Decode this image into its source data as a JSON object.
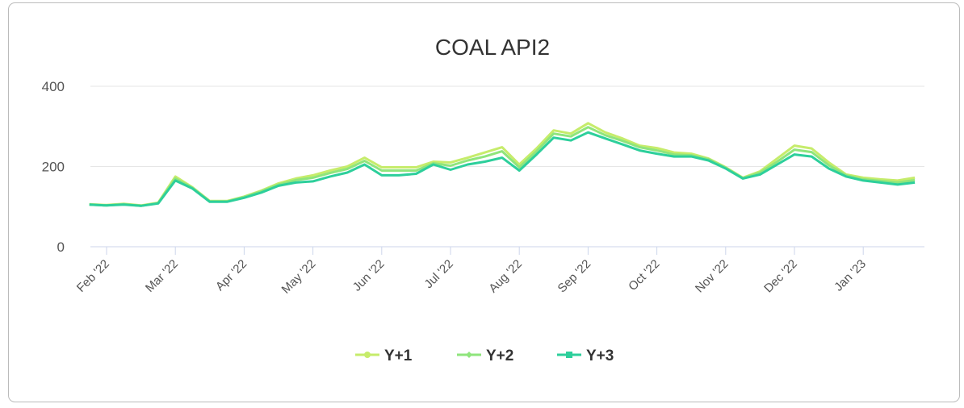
{
  "chart_data": {
    "type": "line",
    "title": "COAL API2",
    "categories": [
      null,
      "Feb '22",
      null,
      null,
      null,
      "Mar '22",
      null,
      null,
      null,
      "Apr '22",
      null,
      null,
      null,
      "May '22",
      null,
      null,
      null,
      "Jun '22",
      null,
      null,
      null,
      "Jul '22",
      null,
      null,
      null,
      "Aug '22",
      null,
      null,
      null,
      "Sep '22",
      null,
      null,
      null,
      "Oct '22",
      null,
      null,
      null,
      "Nov '22",
      null,
      null,
      null,
      "Dec '22",
      null,
      null,
      null,
      "Jan '23",
      null,
      null,
      null
    ],
    "series": [
      {
        "name": "Y+1",
        "color": "#c6ec6b",
        "values": [
          106,
          104,
          107,
          103,
          110,
          175,
          148,
          114,
          114,
          125,
          140,
          158,
          170,
          178,
          190,
          200,
          222,
          198,
          198,
          198,
          212,
          210,
          222,
          235,
          248,
          205,
          245,
          290,
          282,
          308,
          285,
          270,
          252,
          246,
          235,
          232,
          220,
          198,
          172,
          188,
          220,
          252,
          245,
          210,
          180,
          172,
          168,
          165,
          172
        ]
      },
      {
        "name": "Y+2",
        "color": "#8fe57c",
        "values": [
          105,
          103,
          106,
          102,
          109,
          170,
          147,
          113,
          113,
          124,
          138,
          155,
          166,
          172,
          184,
          194,
          214,
          190,
          190,
          190,
          208,
          202,
          215,
          225,
          238,
          198,
          238,
          282,
          275,
          298,
          278,
          264,
          248,
          240,
          230,
          228,
          218,
          197,
          171,
          185,
          212,
          242,
          236,
          203,
          178,
          168,
          164,
          160,
          166
        ]
      },
      {
        "name": "Y+3",
        "color": "#2dcf9b",
        "values": [
          105,
          103,
          105,
          102,
          108,
          165,
          145,
          112,
          112,
          122,
          135,
          152,
          160,
          163,
          175,
          185,
          205,
          178,
          178,
          182,
          205,
          192,
          205,
          212,
          222,
          190,
          230,
          272,
          265,
          285,
          270,
          255,
          240,
          232,
          225,
          225,
          215,
          195,
          170,
          180,
          205,
          230,
          225,
          195,
          175,
          165,
          160,
          155,
          160
        ]
      }
    ],
    "ylim": [
      0,
      400
    ],
    "yticks": [
      0,
      200,
      400
    ],
    "grid": true,
    "legend": "bottom"
  }
}
